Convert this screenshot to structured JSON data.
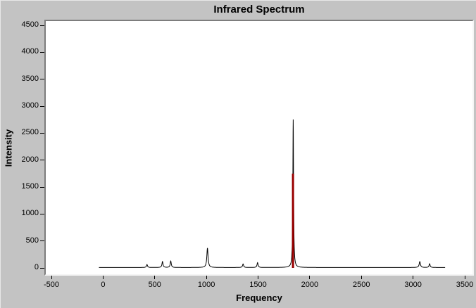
{
  "chart_data": {
    "type": "line",
    "title": "Infrared Spectrum",
    "xlabel": "Frequency",
    "ylabel": "Intensity",
    "xlim": [
      -500,
      3500
    ],
    "ylim": [
      0,
      4500
    ],
    "xticks": [
      -500,
      0,
      500,
      1000,
      1500,
      2000,
      2500,
      3000,
      3500
    ],
    "yticks": [
      0,
      500,
      1000,
      1500,
      2000,
      2500,
      3000,
      3500,
      4000,
      4500
    ],
    "grid": false,
    "legend": "none",
    "colors": {
      "window_background": "#c3c3c3",
      "plot_background": "#ffffff",
      "line": "#000000",
      "highlight": "#990000",
      "text": "#000000"
    },
    "baseline": {
      "x_start": -40,
      "x_end": 3310,
      "level": 8
    },
    "peaks": [
      {
        "x": 425,
        "y": 55,
        "w": 6
      },
      {
        "x": 575,
        "y": 110,
        "w": 6
      },
      {
        "x": 655,
        "y": 120,
        "w": 6
      },
      {
        "x": 1010,
        "y": 360,
        "w": 7
      },
      {
        "x": 1355,
        "y": 65,
        "w": 6
      },
      {
        "x": 1495,
        "y": 90,
        "w": 6
      },
      {
        "x": 1840,
        "y": 2745,
        "w": 4
      },
      {
        "x": 3065,
        "y": 110,
        "w": 7
      },
      {
        "x": 3160,
        "y": 70,
        "w": 6
      }
    ],
    "highlight_line": {
      "x": 1838,
      "y": 1750
    }
  }
}
